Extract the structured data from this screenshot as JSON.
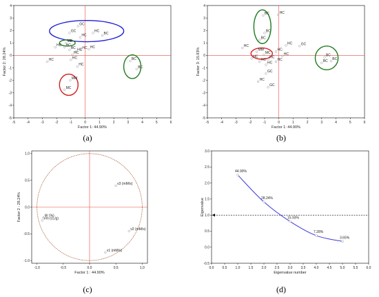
{
  "figure": {
    "panel_labels": [
      "(a)",
      "(b)",
      "(c)",
      "(d)"
    ]
  },
  "colors": {
    "axis": "#000000",
    "origin_line": "#e74c3c",
    "point": "#9a9a9a",
    "ellipse_blue": "#1f1fd6",
    "ellipse_green": "#1e7a1e",
    "ellipse_red": "#d21f1f",
    "circle": "#a0522d",
    "curve": "#3b3bd9",
    "pct_label": "#2e9e2e"
  },
  "chart_data": [
    {
      "panel": "(a)",
      "type": "scatter",
      "xlabel": "Factor 1: 44.90%",
      "ylabel": "Factor 2: 28.24%",
      "xlim": [
        -5,
        6
      ],
      "ylim": [
        -5,
        4
      ],
      "xticks": [
        -5,
        -4,
        -3,
        -2,
        -1,
        0,
        1,
        2,
        3,
        4,
        5,
        6
      ],
      "yticks": [
        -5,
        -4,
        -3,
        -2,
        -1,
        0,
        1,
        2,
        3,
        4
      ],
      "points": [
        {
          "label": "GC",
          "x": -0.5,
          "y": 2.35
        },
        {
          "label": "HC",
          "x": 0.55,
          "y": 1.8
        },
        {
          "label": "GC",
          "x": -1.1,
          "y": 1.8
        },
        {
          "label": "BC",
          "x": 1.2,
          "y": 1.6
        },
        {
          "label": "HC",
          "x": -0.35,
          "y": 1.45
        },
        {
          "label": "MB",
          "x": -1.35,
          "y": 1.0
        },
        {
          "label": "HC",
          "x": -2.1,
          "y": 0.65
        },
        {
          "label": "HC",
          "x": -1.45,
          "y": 0.65
        },
        {
          "label": "BC",
          "x": -1.1,
          "y": 0.45
        },
        {
          "label": "HC",
          "x": -0.3,
          "y": 0.45
        },
        {
          "label": "HC",
          "x": 0.25,
          "y": 0.5
        },
        {
          "label": "HC",
          "x": -0.65,
          "y": 0.3
        },
        {
          "label": "HC",
          "x": -0.9,
          "y": 0.05
        },
        {
          "label": "HC",
          "x": -2.65,
          "y": -0.5
        },
        {
          "label": "HC",
          "x": -1.0,
          "y": -0.35
        },
        {
          "label": "HC",
          "x": -0.55,
          "y": -0.9
        },
        {
          "label": "BC",
          "x": 3.15,
          "y": -0.45
        },
        {
          "label": "BC",
          "x": 3.6,
          "y": -1.1
        },
        {
          "label": "MM",
          "x": -1.05,
          "y": -2.0
        },
        {
          "label": "MC",
          "x": -1.45,
          "y": -2.75
        }
      ],
      "groups": [
        {
          "color": "ellipse_blue",
          "cx": 0.1,
          "cy": 1.95,
          "rx": 2.6,
          "ry": 0.85
        },
        {
          "color": "ellipse_green",
          "cx": -1.25,
          "cy": 1.0,
          "rx": 0.55,
          "ry": 0.25
        },
        {
          "color": "ellipse_green",
          "cx": 3.3,
          "cy": -0.9,
          "rx": 0.6,
          "ry": 0.95
        },
        {
          "color": "ellipse_red",
          "cx": -1.15,
          "cy": -2.35,
          "rx": 0.65,
          "ry": 0.85
        }
      ]
    },
    {
      "panel": "(b)",
      "type": "scatter",
      "xlabel": "Factor 1: 44.90%",
      "ylabel": "Factor 3: 15.93%",
      "xlim": [
        -5,
        6
      ],
      "ylim": [
        -5,
        4
      ],
      "xticks": [
        -5,
        -4,
        -3,
        -2,
        -1,
        0,
        1,
        2,
        3,
        4,
        5,
        6
      ],
      "yticks": [
        -5,
        -4,
        -3,
        -2,
        -1,
        0,
        1,
        2,
        3,
        4
      ],
      "points": [
        {
          "label": "BC",
          "x": -1.1,
          "y": 3.2
        },
        {
          "label": "HC",
          "x": -0.05,
          "y": 3.25
        },
        {
          "label": "BC",
          "x": -1.0,
          "y": 1.8
        },
        {
          "label": "BC",
          "x": -1.35,
          "y": 1.25
        },
        {
          "label": "HC",
          "x": -2.55,
          "y": 0.6
        },
        {
          "label": "GC",
          "x": 1.45,
          "y": 0.75
        },
        {
          "label": "HC",
          "x": 0.5,
          "y": 0.8
        },
        {
          "label": "MM",
          "x": -1.55,
          "y": 0.3
        },
        {
          "label": "MC",
          "x": -1.05,
          "y": 0.05
        },
        {
          "label": "HC",
          "x": -0.2,
          "y": 0.3
        },
        {
          "label": "HC",
          "x": 0.25,
          "y": -0.05
        },
        {
          "label": "HC",
          "x": -1.9,
          "y": -0.25
        },
        {
          "label": "HC",
          "x": -0.75,
          "y": -0.3
        },
        {
          "label": "HC",
          "x": -0.2,
          "y": -0.5
        },
        {
          "label": "HC",
          "x": -1.35,
          "y": -0.5
        },
        {
          "label": "HC",
          "x": -0.9,
          "y": -0.75
        },
        {
          "label": "GC",
          "x": -0.9,
          "y": -1.45
        },
        {
          "label": "HC",
          "x": -1.45,
          "y": -2.1
        },
        {
          "label": "GC",
          "x": -0.75,
          "y": -2.55
        },
        {
          "label": "BC",
          "x": 3.2,
          "y": -0.15
        },
        {
          "label": "BC",
          "x": 3.65,
          "y": -0.45
        },
        {
          "label": "BC",
          "x": 3.0,
          "y": -0.6
        }
      ],
      "groups": [
        {
          "color": "ellipse_green",
          "cx": -1.15,
          "cy": 2.3,
          "rx": 0.6,
          "ry": 1.35
        },
        {
          "color": "ellipse_red",
          "cx": -1.2,
          "cy": 0.15,
          "rx": 0.75,
          "ry": 0.45
        },
        {
          "color": "ellipse_green",
          "cx": 3.35,
          "cy": -0.2,
          "rx": 0.8,
          "ry": 0.95
        }
      ]
    },
    {
      "panel": "(c)",
      "type": "scatter",
      "xlabel": "Factor 1 : 44.90%",
      "ylabel": "Factor 2 : 28.24%",
      "xlim": [
        -1.1,
        1.1
      ],
      "ylim": [
        -1.05,
        1.05
      ],
      "xticks": [
        -1.0,
        -0.5,
        0.0,
        0.5,
        1.0
      ],
      "yticks": [
        -1.0,
        -0.5,
        0.0,
        0.5,
        1.0
      ],
      "circle_radius": 1,
      "points": [
        {
          "label": "v3 (mM/s)",
          "x": 0.5,
          "y": 0.4
        },
        {
          "label": "W (%)",
          "x": -0.88,
          "y": -0.2
        },
        {
          "label": "Vm (cL/g)",
          "x": -0.9,
          "y": -0.25
        },
        {
          "label": "v2 (mM/s)",
          "x": 0.75,
          "y": -0.45
        },
        {
          "label": "v1 (mM/s)",
          "x": 0.3,
          "y": -0.85
        }
      ]
    },
    {
      "panel": "(d)",
      "type": "line",
      "xlabel": "Eigenvalue number",
      "ylabel": "Eigenvalue",
      "xlim": [
        0.0,
        6.0
      ],
      "ylim": [
        -0.5,
        3.0
      ],
      "xticks": [
        0.0,
        0.5,
        1.0,
        1.5,
        2.0,
        2.5,
        3.0,
        3.5,
        4.0,
        4.5,
        5.0,
        5.5,
        6.0
      ],
      "yticks": [
        -0.5,
        0.0,
        0.5,
        1.0,
        1.5,
        2.0,
        2.5,
        3.0
      ],
      "x": [
        1,
        2,
        3,
        4,
        5
      ],
      "y": [
        2.25,
        1.41,
        0.8,
        0.36,
        0.18
      ],
      "point_labels": [
        "44.90%",
        "28.24%",
        "15.93%",
        "7.28%",
        "3.65%"
      ],
      "reference_line": 1.0
    }
  ]
}
